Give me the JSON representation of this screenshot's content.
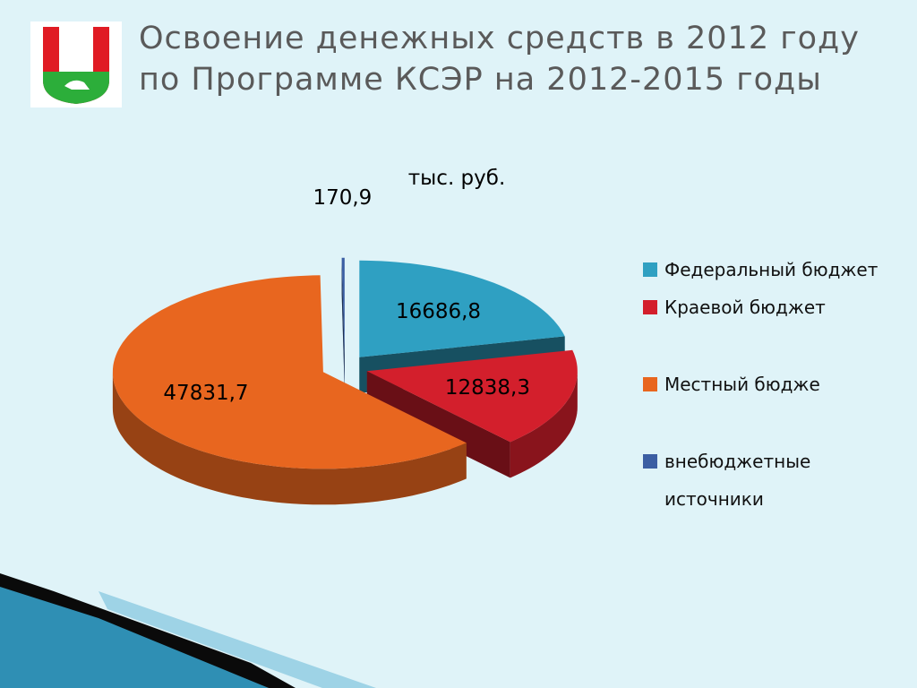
{
  "chart_data": {
    "type": "pie",
    "title": "Освоение денежных средств в 2012 году по Программе КСЭР на 2012-2015 годы",
    "subtitle": "тыс. руб.",
    "categories": [
      "Федеральный бюджет",
      "Краевой бюджет",
      "Местный бюдже",
      "внебюджетные источники"
    ],
    "values": [
      16686.8,
      12838.3,
      47831.7,
      170.9
    ],
    "value_labels": [
      "16686,8",
      "12838,3",
      "47831,7",
      "170,9"
    ],
    "colors": [
      "#2fa0c2",
      "#d31f2c",
      "#e8661f",
      "#3b5ea3"
    ],
    "legend": "right"
  }
}
